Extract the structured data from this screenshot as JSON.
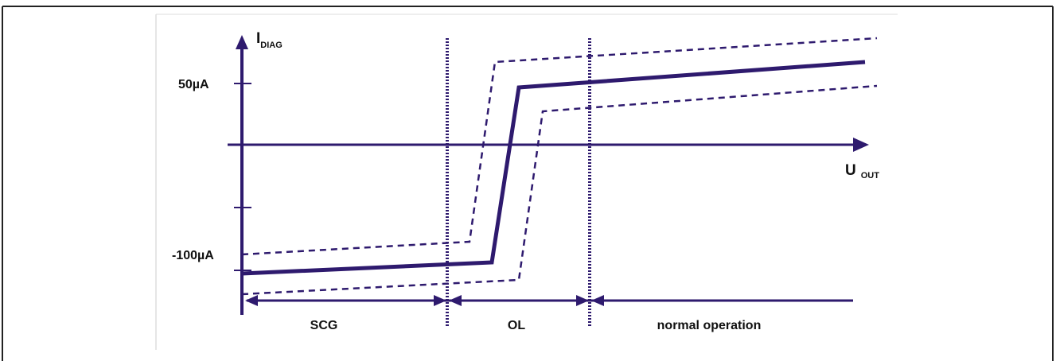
{
  "diagram": {
    "y_axis": {
      "symbol": "I",
      "subscript": "DIAG"
    },
    "x_axis": {
      "symbol": "U",
      "subscript": "OUT"
    },
    "y_ticks": {
      "upper": "50µA",
      "lower": "-100µA"
    },
    "regions": [
      {
        "label": "SCG"
      },
      {
        "label": "OL"
      },
      {
        "label": "normal operation"
      }
    ],
    "colors": {
      "curve": "#2e1a6e",
      "border": "#222222",
      "text": "#111111"
    }
  }
}
